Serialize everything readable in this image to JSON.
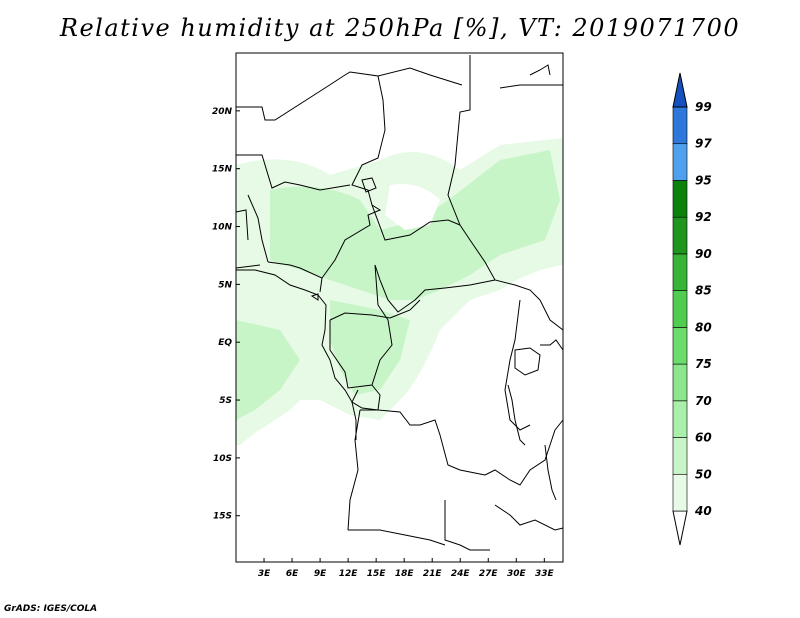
{
  "title": "Relative humidity at 250hPa [%], VT: 2019071700",
  "footer": "GrADS: IGES/COLA",
  "map": {
    "lon_range": [
      0,
      35
    ],
    "lat_range": [
      -19,
      25
    ],
    "lon_ticks": [
      {
        "value": 3,
        "label": "3E"
      },
      {
        "value": 6,
        "label": "6E"
      },
      {
        "value": 9,
        "label": "9E"
      },
      {
        "value": 12,
        "label": "12E"
      },
      {
        "value": 15,
        "label": "15E"
      },
      {
        "value": 18,
        "label": "18E"
      },
      {
        "value": 21,
        "label": "21E"
      },
      {
        "value": 24,
        "label": "24E"
      },
      {
        "value": 27,
        "label": "27E"
      },
      {
        "value": 30,
        "label": "30E"
      },
      {
        "value": 33,
        "label": "33E"
      }
    ],
    "lat_ticks": [
      {
        "value": 20,
        "label": "20N"
      },
      {
        "value": 15,
        "label": "15N"
      },
      {
        "value": 10,
        "label": "10N"
      },
      {
        "value": 5,
        "label": "5N"
      },
      {
        "value": 0,
        "label": "EQ"
      },
      {
        "value": -5,
        "label": "5S"
      },
      {
        "value": -10,
        "label": "10S"
      },
      {
        "value": -15,
        "label": "15S"
      }
    ]
  },
  "colorbar": {
    "levels": [
      "40",
      "50",
      "60",
      "70",
      "75",
      "80",
      "85",
      "90",
      "92",
      "95",
      "97",
      "99"
    ],
    "colors": [
      "#ffffff",
      "#e6fae6",
      "#c8f5c8",
      "#aaf0aa",
      "#8ce68c",
      "#6cdc6c",
      "#50cc50",
      "#37b437",
      "#1e961e",
      "#0c820c",
      "#50a0f0",
      "#2e78dc",
      "#1450c0"
    ]
  },
  "colors": {
    "background": "#ffffff",
    "border_lines": "#000000",
    "light_green": "#e6fae6",
    "mid_green": "#c8f5c8"
  }
}
